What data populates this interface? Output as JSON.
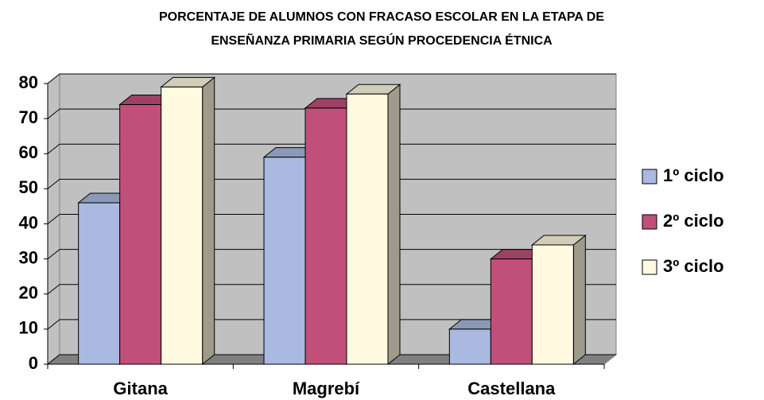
{
  "chart_data": {
    "type": "bar3d",
    "title": [
      "PORCENTAJE DE ALUMNOS CON FRACASO ESCOLAR EN LA ETAPA DE",
      "ENSEÑANZA PRIMARIA SEGÚN PROCEDENCIA ÉTNICA"
    ],
    "categories": [
      "Gitana",
      "Magrebí",
      "Castellana"
    ],
    "series": [
      {
        "name": "1º ciclo",
        "color": "#aab9e0",
        "values": [
          46,
          59,
          10
        ]
      },
      {
        "name": "2º ciclo",
        "color": "#c0507a",
        "values": [
          74,
          73,
          30
        ]
      },
      {
        "name": "3º ciclo",
        "color": "#fffae0",
        "values": [
          79,
          77,
          34
        ]
      }
    ],
    "ylim": [
      0,
      80
    ],
    "yticks": [
      0,
      10,
      20,
      30,
      40,
      50,
      60,
      70,
      80
    ],
    "grid": true,
    "legend": "right"
  }
}
